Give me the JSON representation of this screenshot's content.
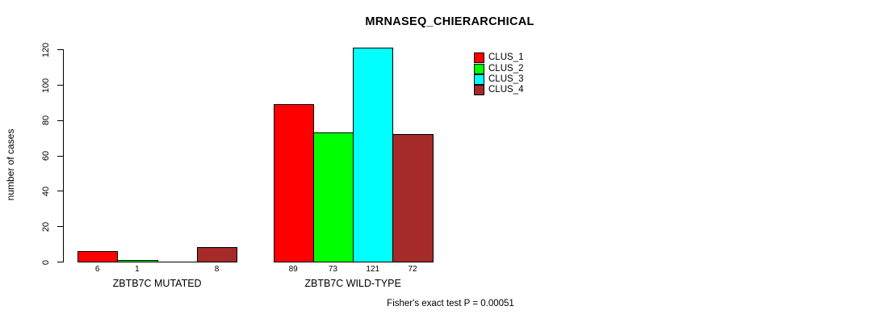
{
  "chart_data": {
    "type": "bar",
    "title": "MRNASEQ_CHIERARCHICAL",
    "ylabel": "number of cases",
    "xlabel": "",
    "ylim": [
      0,
      120
    ],
    "yticks": [
      0,
      20,
      40,
      60,
      80,
      100,
      120
    ],
    "grid": false,
    "legend_position": "top-right-outside",
    "series": [
      "CLUS_1",
      "CLUS_2",
      "CLUS_3",
      "CLUS_4"
    ],
    "colors": [
      "#FF0000",
      "#00FF00",
      "#00FFFF",
      "#A52A2A"
    ],
    "groups": [
      {
        "label": "ZBTB7C MUTATED",
        "values": [
          6,
          1,
          0,
          8
        ],
        "bar_labels": [
          "6",
          "1",
          "",
          "8"
        ]
      },
      {
        "label": "ZBTB7C WILD-TYPE",
        "values": [
          89,
          73,
          121,
          72
        ],
        "bar_labels": [
          "89",
          "73",
          "121",
          "72"
        ]
      }
    ],
    "annotation": "Fisher's exact test P = 0.00051"
  },
  "style_colors": {
    "background": "#FFFFFF",
    "axis": "#000000",
    "text": "#000000"
  }
}
